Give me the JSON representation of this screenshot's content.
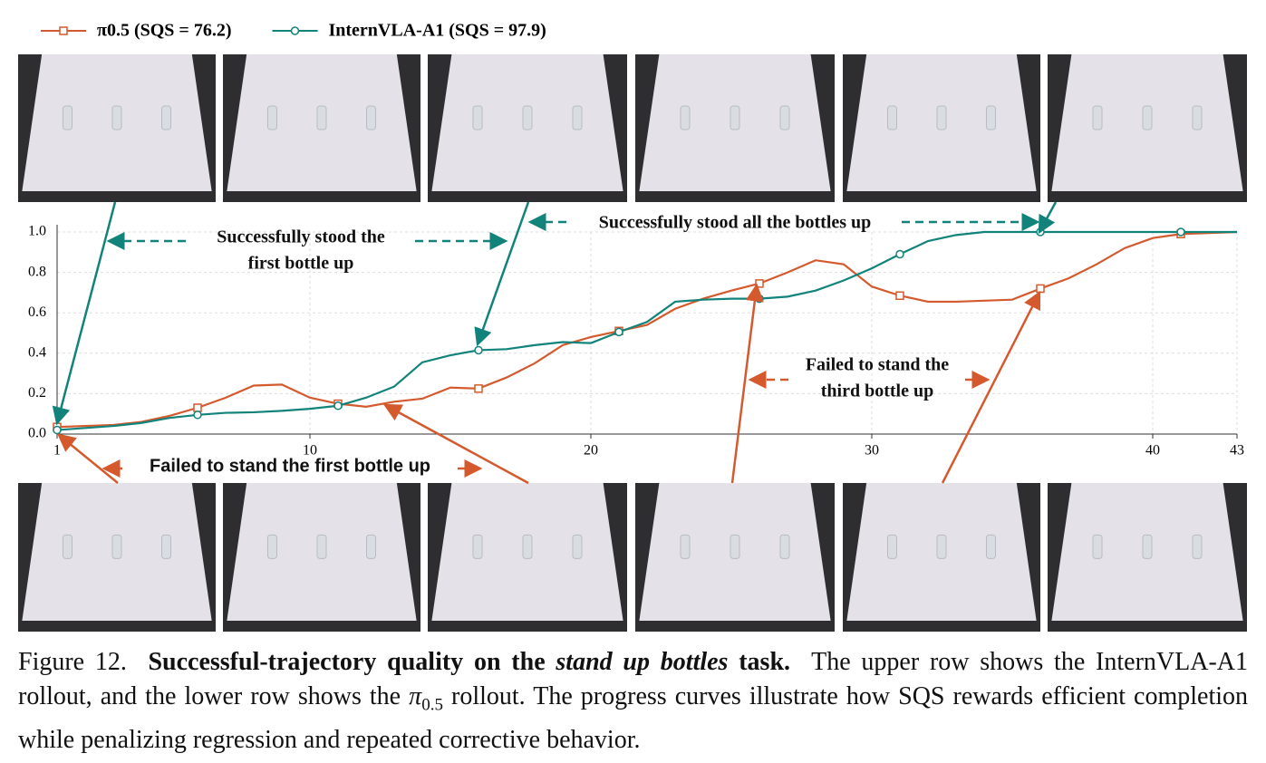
{
  "chart_data": {
    "type": "line",
    "x": [
      1,
      2,
      3,
      4,
      5,
      6,
      7,
      8,
      9,
      10,
      11,
      12,
      13,
      14,
      15,
      16,
      17,
      18,
      19,
      20,
      21,
      22,
      23,
      24,
      25,
      26,
      27,
      28,
      29,
      30,
      31,
      32,
      33,
      34,
      35,
      36,
      37,
      38,
      39,
      40,
      41,
      42,
      43
    ],
    "series": [
      {
        "name": "π0.5 (SQS = 76.2)",
        "color": "#d45a2e",
        "marker": "square",
        "values": [
          0.035,
          0.04,
          0.045,
          0.06,
          0.09,
          0.13,
          0.18,
          0.24,
          0.245,
          0.18,
          0.15,
          0.135,
          0.16,
          0.175,
          0.23,
          0.225,
          0.28,
          0.35,
          0.44,
          0.48,
          0.51,
          0.54,
          0.62,
          0.67,
          0.71,
          0.745,
          0.8,
          0.86,
          0.84,
          0.73,
          0.685,
          0.655,
          0.655,
          0.66,
          0.665,
          0.72,
          0.77,
          0.84,
          0.92,
          0.97,
          0.99,
          0.995,
          1.0
        ]
      },
      {
        "name": "InternVLA-A1 (SQS = 97.9)",
        "color": "#12837a",
        "marker": "circle",
        "values": [
          0.02,
          0.03,
          0.04,
          0.055,
          0.08,
          0.095,
          0.105,
          0.108,
          0.115,
          0.125,
          0.14,
          0.18,
          0.235,
          0.355,
          0.39,
          0.415,
          0.42,
          0.44,
          0.455,
          0.45,
          0.505,
          0.555,
          0.655,
          0.665,
          0.67,
          0.67,
          0.68,
          0.71,
          0.76,
          0.82,
          0.89,
          0.955,
          0.985,
          1.0,
          1.0,
          1.0,
          1.0,
          1.0,
          1.0,
          1.0,
          1.0,
          1.0,
          1.0
        ]
      }
    ],
    "markevery": 5,
    "xlim": [
      1,
      43
    ],
    "xticks": [
      1,
      10,
      20,
      30,
      40,
      43
    ],
    "ylim": [
      0,
      1
    ],
    "yticks": [
      {
        "value": 0,
        "label": "0.0"
      },
      0.2,
      0.4,
      0.6,
      0.8,
      {
        "value": 1,
        "label": "1.0"
      }
    ],
    "grid": true,
    "annotations": [
      {
        "lines": [
          "Successfully stood the",
          "first bottle up"
        ],
        "color": "#12837a"
      },
      {
        "lines": [
          "Successfully stood all the bottles up"
        ],
        "color": "#12837a"
      },
      {
        "lines": [
          "Failed to stand the",
          "third bottle up"
        ],
        "color": "#d45a2e"
      },
      {
        "lines": [
          "Failed to stand the first bottle up"
        ],
        "color": "#d45a2e"
      }
    ]
  },
  "caption": {
    "label": "Figure 12.",
    "bold_1": "Successful-trajectory quality on the",
    "italic": "stand up bottles",
    "bold_2": "task.",
    "text_1": "The upper row shows the InternVLA-A1 rollout, and the lower row shows the",
    "text_sym": "π",
    "text_sub": "0.5",
    "text_2": "rollout. The progress curves illustrate how SQS rewards efficient completion while penalizing regression and repeated corrective behavior."
  }
}
